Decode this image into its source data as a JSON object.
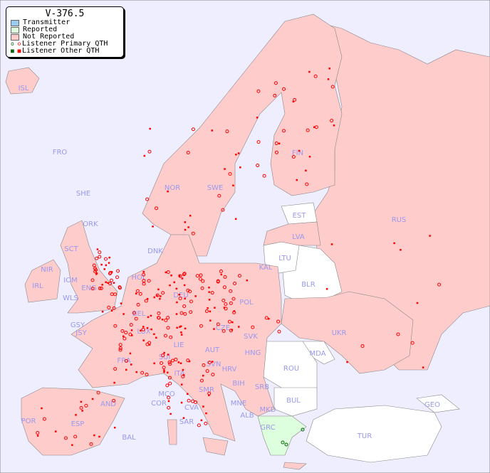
{
  "legend": {
    "title": "V-376.5",
    "items": [
      {
        "label": "Transmitter",
        "color": "#99ccee"
      },
      {
        "label": "Reported",
        "color": "#ddffdd"
      },
      {
        "label": "Not Reported",
        "color": "#ffcccc"
      },
      {
        "label": "Listener Primary QTH",
        "symbol": "circle",
        "colors": [
          "#006600",
          "#ff0000"
        ]
      },
      {
        "label": "Listener Other QTH",
        "symbol": "square",
        "colors": [
          "#006600",
          "#ff0000"
        ]
      }
    ]
  },
  "colors": {
    "sea": "#eeeeff",
    "not_reported": "#ffcccc",
    "reported": "#ddffdd",
    "no_data": "#ffffff",
    "listener": "#ff0000",
    "label": "#9999ee"
  },
  "countries": {
    "ISL": "ISL",
    "FRO": "FRO",
    "SHE": "SHE",
    "ORK": "ORK",
    "NOR": "NOR",
    "SWE": "SWE",
    "FIN": "FIN",
    "RUS": "RUS",
    "EST": "EST",
    "LVA": "LVA",
    "LTU": "LTU",
    "KAL": "KAL",
    "BLR": "BLR",
    "DNK": "DNK",
    "SCT": "SCT",
    "NIR": "NIR",
    "IRL": "IRL",
    "IOM": "IOM",
    "WLS": "WLS",
    "ENG": "ENG",
    "HOL": "HOL",
    "BEL": "BEL",
    "LUX": "LUX",
    "DEU": "DEU",
    "POL": "POL",
    "UKR": "UKR",
    "CZE": "CZE",
    "SVK": "SVK",
    "AUT": "AUT",
    "HNG": "HNG",
    "MDA": "MDA",
    "ROU": "ROU",
    "GSY": "GSY",
    "JSY": "JSY",
    "FRA": "FRA",
    "SUI": "SUI",
    "LIE": "LIE",
    "SVN": "SVN",
    "HRV": "HRV",
    "BIH": "BIH",
    "SRB": "SRB",
    "ITA": "ITA",
    "SMR": "SMR",
    "MCO": "MCO",
    "COR": "COR",
    "CVA": "CVA",
    "MNE": "MNE",
    "BUL": "BUL",
    "MKD": "MKD",
    "ALB": "ALB",
    "GRC": "GRC",
    "TUR": "TUR",
    "GEO": "GEO",
    "AND": "AND",
    "ESP": "ESP",
    "POR": "POR",
    "BAL": "BAL",
    "SAR": "SAR"
  }
}
